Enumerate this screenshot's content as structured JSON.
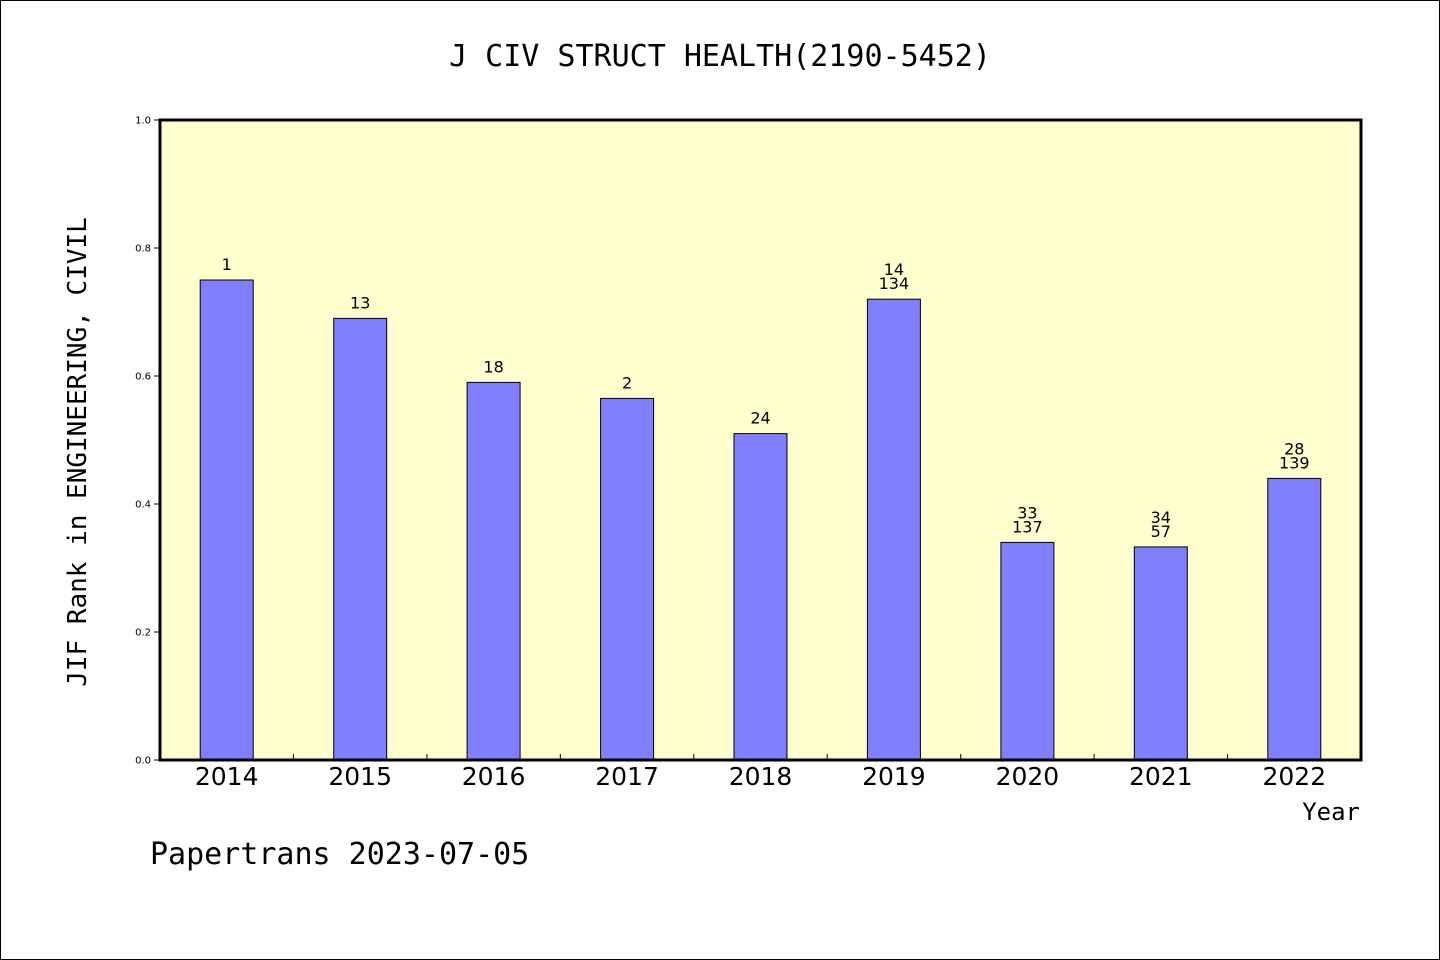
{
  "chart_data": {
    "type": "bar",
    "title": "J CIV STRUCT HEALTH(2190-5452)",
    "xlabel": "Year",
    "ylabel": "JIF Rank in ENGINEERING, CIVIL",
    "ylim": [
      0,
      1.0
    ],
    "yticks": [
      "0.0",
      "0.2",
      "0.4",
      "0.6",
      "0.8",
      "1.0"
    ],
    "categories": [
      "2014",
      "2015",
      "2016",
      "2017",
      "2018",
      "2019",
      "2020",
      "2021",
      "2022"
    ],
    "values": [
      0.75,
      0.69,
      0.59,
      0.565,
      0.51,
      0.72,
      0.34,
      0.333,
      0.44
    ],
    "bar_labels": [
      [
        "1"
      ],
      [
        "13"
      ],
      [
        "18"
      ],
      [
        "2"
      ],
      [
        "24"
      ],
      [
        "14",
        "134"
      ],
      [
        "33",
        "137"
      ],
      [
        "34",
        "57"
      ],
      [
        "28",
        "139"
      ]
    ],
    "grid": false,
    "colors": {
      "plot_background": "#ffffd0",
      "bar_fill": "#8080ff",
      "bar_stroke": "#000000"
    }
  },
  "footer": {
    "text": "Papertrans 2023-07-05"
  }
}
